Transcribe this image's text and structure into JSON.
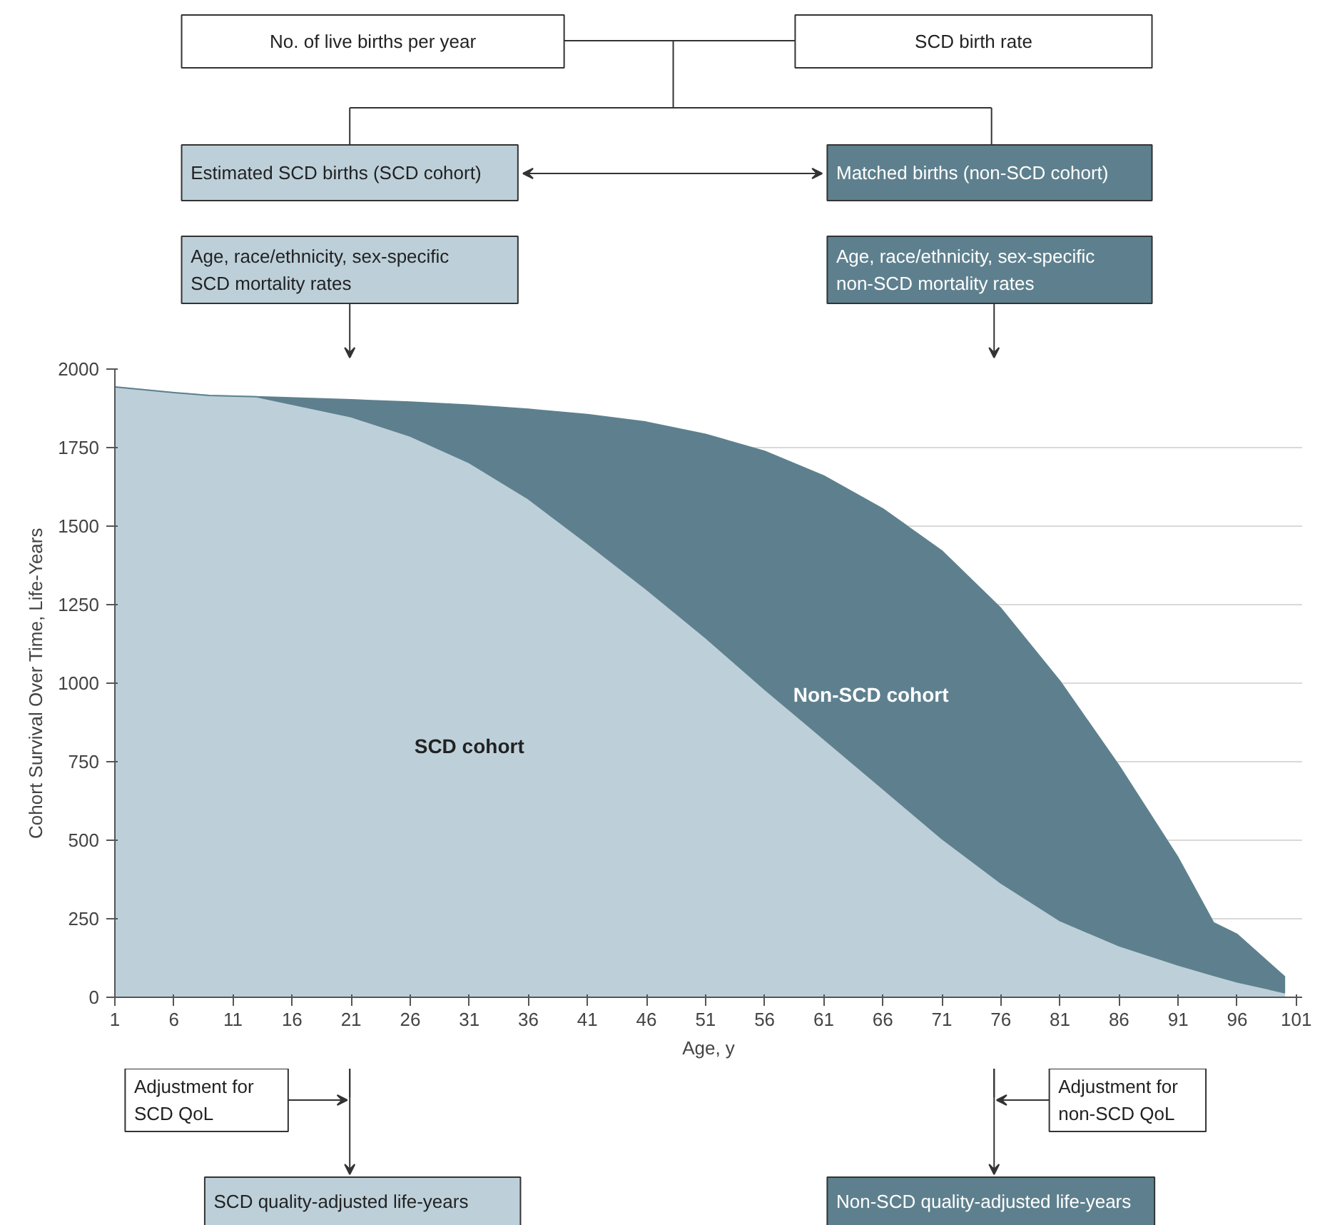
{
  "chart_data": {
    "type": "area",
    "xlabel": "Age, y",
    "ylabel": "Cohort Survival Over Time, Life-Years",
    "x": [
      1,
      6,
      9,
      13,
      21,
      26,
      31,
      36,
      41,
      46,
      51,
      56,
      61,
      66,
      71,
      76,
      81,
      86,
      91,
      94,
      96,
      100
    ],
    "series": [
      {
        "name": "Non-SCD cohort",
        "color": "#5e808e",
        "values": [
          1943,
          1925,
          1916,
          1912,
          1902,
          1895,
          1885,
          1872,
          1855,
          1831,
          1792,
          1738,
          1660,
          1555,
          1421,
          1238,
          1006,
          737,
          444,
          237,
          200,
          66
        ]
      },
      {
        "name": "SCD cohort",
        "color": "#bdd0da",
        "values": [
          1943,
          1925,
          1916,
          1912,
          1848,
          1787,
          1702,
          1587,
          1445,
          1299,
          1145,
          981,
          823,
          664,
          505,
          364,
          244,
          164,
          103,
          70,
          49,
          15
        ]
      }
    ],
    "xlim": [
      1,
      101.5
    ],
    "ylim": [
      0,
      2000
    ],
    "xticks": [
      1,
      6,
      11,
      16,
      21,
      26,
      31,
      36,
      41,
      46,
      51,
      56,
      61,
      66,
      71,
      76,
      81,
      86,
      91,
      96,
      101
    ],
    "yticks": [
      0,
      250,
      500,
      750,
      1000,
      1250,
      1500,
      1750,
      2000
    ],
    "grid": "y",
    "annotations": [
      "No. of live births per year",
      "SCD birth rate",
      "Estimated SCD births (SCD cohort)",
      "Matched births (non-SCD cohort)",
      "Age, race/ethnicity, sex-specific\nSCD mortality rates",
      "Age, race/ethnicity, sex-specific\nnon-SCD mortality rates",
      "Adjustment for\nSCD QoL",
      "Adjustment for\nnon-SCD QoL",
      "SCD quality-adjusted life-years",
      "Non-SCD quality-adjusted life-years"
    ]
  }
}
